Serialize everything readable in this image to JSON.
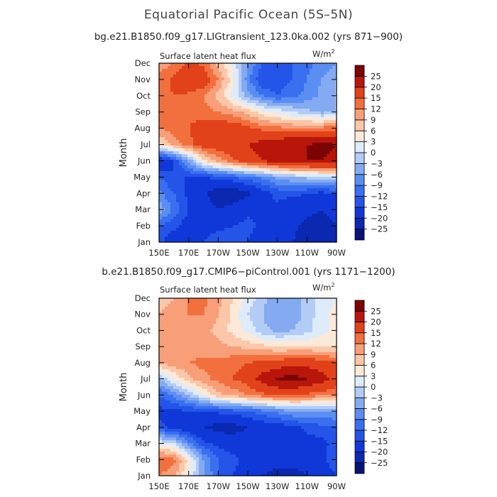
{
  "figure": {
    "title": "Equatorial Pacific Ocean (5S–5N)"
  },
  "chart_data": [
    {
      "type": "heatmap",
      "subtitle": "bg.e21.B1850.f09_g17.LIGtransient_123.0ka.002 (yrs 871−900)",
      "variable": "Surface latent heat flux",
      "units": "W/m",
      "units_superscript": "2",
      "xlabel": "",
      "ylabel": "Month",
      "x_ticks": [
        "150E",
        "170E",
        "170W",
        "150W",
        "130W",
        "110W",
        "90W"
      ],
      "x_tick_lon": [
        150,
        170,
        190,
        210,
        230,
        250,
        270
      ],
      "xlim": [
        150,
        270
      ],
      "y_ticks": [
        "Jan",
        "Feb",
        "Mar",
        "Apr",
        "May",
        "Jun",
        "Jul",
        "Aug",
        "Sep",
        "Oct",
        "Nov",
        "Dec"
      ],
      "colorbar_levels": [
        -25,
        -20,
        -15,
        -12,
        -9,
        -6,
        -3,
        0,
        3,
        6,
        9,
        12,
        15,
        20,
        25
      ],
      "colorbar_colors": [
        "#08137a",
        "#0a28b0",
        "#1038d8",
        "#2455e8",
        "#3a6ff0",
        "#5b8ef2",
        "#84aaf2",
        "#b3ccf5",
        "#deebfb",
        "#fde9d7",
        "#fbc7a8",
        "#f89e78",
        "#f2703e",
        "#e1421a",
        "#b8160a",
        "#7b0404"
      ],
      "x": [
        150,
        160,
        170,
        180,
        190,
        200,
        210,
        220,
        230,
        240,
        250,
        260,
        270
      ],
      "z": [
        [
          -14,
          -18,
          -18,
          -15,
          -12,
          -14,
          -15,
          -18,
          -18,
          -20,
          -22,
          -24,
          -24
        ],
        [
          -12,
          -14,
          -17,
          -18,
          -16,
          -15,
          -14,
          -16,
          -17,
          -19,
          -21,
          -22,
          -20
        ],
        [
          -4,
          -10,
          -15,
          -18,
          -20,
          -18,
          -16,
          -15,
          -16,
          -18,
          -19,
          -20,
          -18
        ],
        [
          -8,
          -12,
          -16,
          -19,
          -23,
          -24,
          -21,
          -17,
          -14,
          -14,
          -15,
          -16,
          -15
        ],
        [
          -12,
          -15,
          -15,
          -15,
          -14,
          -12,
          -10,
          -8,
          -5,
          -3,
          -2,
          -1,
          0
        ],
        [
          -20,
          -15,
          -5,
          5,
          10,
          14,
          18,
          20,
          22,
          24,
          25,
          25,
          24
        ],
        [
          5,
          10,
          14,
          17,
          18,
          19,
          20,
          22,
          24,
          25,
          25,
          26,
          25
        ],
        [
          12,
          14,
          15,
          17,
          18,
          18,
          16,
          14,
          13,
          12,
          12,
          13,
          14
        ],
        [
          15,
          15,
          14,
          13,
          12,
          10,
          8,
          4,
          2,
          0,
          -2,
          -4,
          -3
        ],
        [
          14,
          15,
          14,
          12,
          8,
          2,
          -5,
          -9,
          -12,
          -10,
          -8,
          -5,
          -3
        ],
        [
          13,
          16,
          20,
          18,
          12,
          4,
          -8,
          -15,
          -14,
          -12,
          -9,
          -6,
          -3
        ],
        [
          10,
          12,
          16,
          14,
          8,
          2,
          -6,
          -12,
          -15,
          -12,
          -10,
          -8,
          -6
        ]
      ]
    },
    {
      "type": "heatmap",
      "subtitle": "b.e21.B1850.f09_g17.CMIP6−piControl.001 (yrs 1171−1200)",
      "variable": "Surface latent heat flux",
      "units": "W/m",
      "units_superscript": "2",
      "xlabel": "",
      "ylabel": "Month",
      "x_ticks": [
        "150E",
        "170E",
        "170W",
        "150W",
        "130W",
        "110W",
        "90W"
      ],
      "x_tick_lon": [
        150,
        170,
        190,
        210,
        230,
        250,
        270
      ],
      "xlim": [
        150,
        270
      ],
      "y_ticks": [
        "Jan",
        "Feb",
        "Mar",
        "Apr",
        "May",
        "Jun",
        "Jul",
        "Aug",
        "Sep",
        "Oct",
        "Nov",
        "Dec"
      ],
      "colorbar_levels": [
        -25,
        -20,
        -15,
        -12,
        -9,
        -6,
        -3,
        0,
        3,
        6,
        9,
        12,
        15,
        20,
        25
      ],
      "colorbar_colors": [
        "#08137a",
        "#0a28b0",
        "#1038d8",
        "#2455e8",
        "#3a6ff0",
        "#5b8ef2",
        "#84aaf2",
        "#b3ccf5",
        "#deebfb",
        "#fde9d7",
        "#fbc7a8",
        "#f89e78",
        "#f2703e",
        "#e1421a",
        "#b8160a",
        "#7b0404"
      ],
      "x": [
        150,
        160,
        170,
        180,
        190,
        200,
        210,
        220,
        230,
        240,
        250,
        260,
        270
      ],
      "z": [
        [
          12,
          10,
          3,
          -5,
          -12,
          -15,
          -18,
          -20,
          -22,
          -22,
          -20,
          -18,
          -15
        ],
        [
          15,
          13,
          5,
          -6,
          -12,
          -14,
          -16,
          -17,
          -18,
          -18,
          -18,
          -16,
          -12
        ],
        [
          2,
          0,
          -8,
          -14,
          -16,
          -17,
          -18,
          -18,
          -19,
          -19,
          -17,
          -16,
          -14
        ],
        [
          -14,
          -16,
          -18,
          -20,
          -22,
          -22,
          -20,
          -18,
          -17,
          -16,
          -14,
          -13,
          -12
        ],
        [
          -16,
          -16,
          -15,
          -15,
          -14,
          -13,
          -12,
          -10,
          -8,
          -6,
          -5,
          -6,
          -6
        ],
        [
          -12,
          -8,
          -3,
          3,
          8,
          10,
          12,
          14,
          15,
          15,
          14,
          13,
          12
        ],
        [
          -3,
          3,
          8,
          11,
          13,
          15,
          17,
          22,
          26,
          27,
          25,
          22,
          18
        ],
        [
          9,
          11,
          12,
          13,
          13,
          14,
          15,
          16,
          17,
          18,
          18,
          17,
          15
        ],
        [
          10,
          10,
          10,
          10,
          10,
          9,
          8,
          7,
          6,
          6,
          6,
          6,
          6
        ],
        [
          9,
          9,
          10,
          10,
          8,
          5,
          2,
          -2,
          -4,
          -3,
          -1,
          2,
          4
        ],
        [
          9,
          10,
          12,
          12,
          9,
          5,
          0,
          -3,
          -6,
          -5,
          -2,
          2,
          4
        ],
        [
          8,
          9,
          12,
          13,
          10,
          6,
          2,
          -2,
          -5,
          -4,
          -2,
          1,
          3
        ]
      ]
    }
  ]
}
